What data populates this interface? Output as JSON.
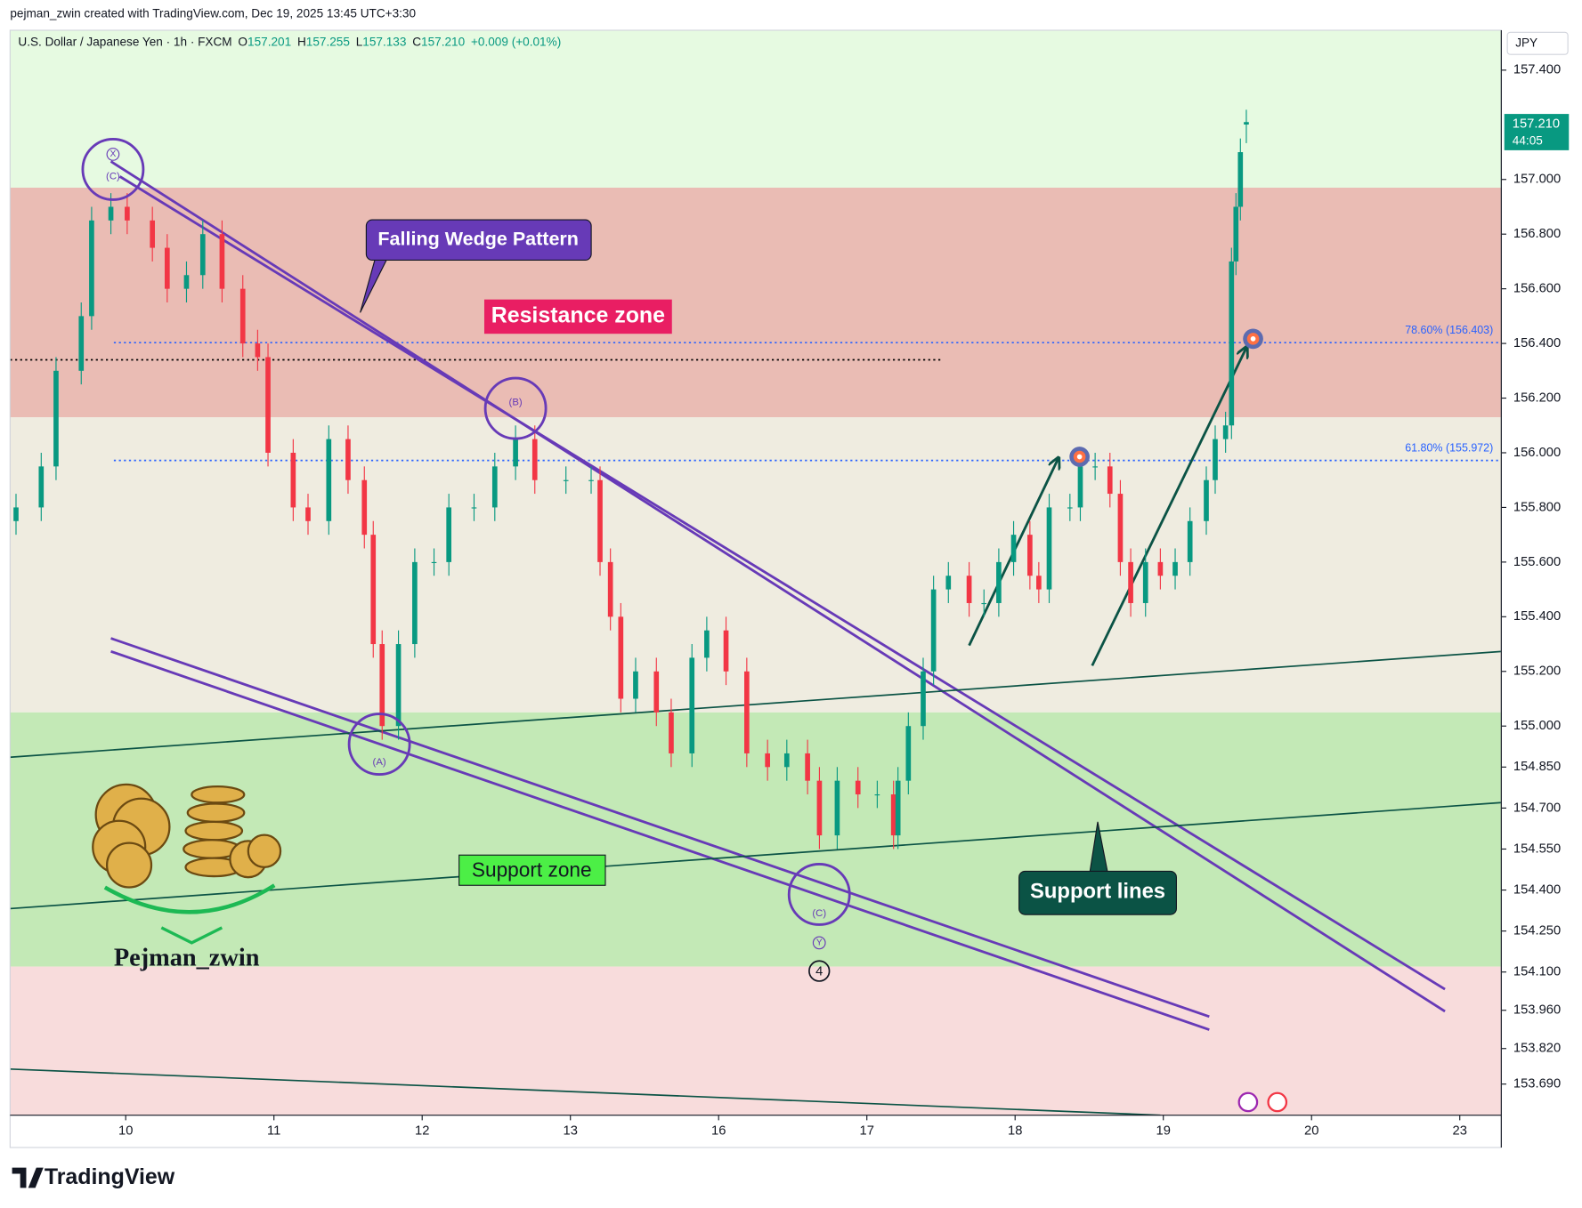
{
  "header": "pejman_zwin created with TradingView.com, Dec 19, 2025 13:45 UTC+3:30",
  "legend": {
    "symbol": "U.S. Dollar / Japanese Yen · 1h · FXCM",
    "items": [
      {
        "key": "O",
        "value": "157.201"
      },
      {
        "key": "H",
        "value": "157.255"
      },
      {
        "key": "L",
        "value": "157.133"
      },
      {
        "key": "C",
        "value": "157.210"
      }
    ],
    "change": "+0.009 (+0.01%)"
  },
  "currency": "JPY",
  "price_tag": {
    "price": "157.210",
    "countdown": "44:05"
  },
  "annotations": {
    "wedge": "Falling Wedge Pattern",
    "resistance": "Resistance zone",
    "support": "Support zone",
    "support_lines": "Support lines",
    "author": "Pejman_zwin",
    "waves": [
      "X",
      "(C)",
      "(B)",
      "(A)",
      "(C)",
      "Y",
      "4"
    ]
  },
  "footer": "TradingView",
  "chart_data": {
    "type": "candlestick",
    "up_color": "#089981",
    "down_color": "#f23645",
    "xlim": [
      -0.78,
      9.28
    ],
    "ylim": [
      153.576,
      157.546
    ],
    "xticks": [
      {
        "value": 0,
        "label": "10"
      },
      {
        "value": 1,
        "label": "11"
      },
      {
        "value": 2,
        "label": "12"
      },
      {
        "value": 3,
        "label": "13"
      },
      {
        "value": 4,
        "label": "16"
      },
      {
        "value": 5,
        "label": "17"
      },
      {
        "value": 6,
        "label": "18"
      },
      {
        "value": 7,
        "label": "19"
      },
      {
        "value": 8,
        "label": "20"
      },
      {
        "value": 9,
        "label": "23"
      }
    ],
    "yticks": [
      {
        "value": 157.4,
        "label": "157.400"
      },
      {
        "value": 157.0,
        "label": "157.000"
      },
      {
        "value": 156.8,
        "label": "156.800"
      },
      {
        "value": 156.6,
        "label": "156.600"
      },
      {
        "value": 156.4,
        "label": "156.400"
      },
      {
        "value": 156.2,
        "label": "156.200"
      },
      {
        "value": 156.0,
        "label": "156.000"
      },
      {
        "value": 155.8,
        "label": "155.800"
      },
      {
        "value": 155.6,
        "label": "155.600"
      },
      {
        "value": 155.4,
        "label": "155.400"
      },
      {
        "value": 155.2,
        "label": "155.200"
      },
      {
        "value": 155.0,
        "label": "155.000"
      },
      {
        "value": 154.85,
        "label": "154.850"
      },
      {
        "value": 154.7,
        "label": "154.700"
      },
      {
        "value": 154.55,
        "label": "154.550"
      },
      {
        "value": 154.4,
        "label": "154.400"
      },
      {
        "value": 154.25,
        "label": "154.250"
      },
      {
        "value": 154.1,
        "label": "154.100"
      },
      {
        "value": 153.96,
        "label": "153.960"
      },
      {
        "value": 153.82,
        "label": "153.820"
      },
      {
        "value": 153.69,
        "label": "153.690"
      }
    ],
    "zones": [
      {
        "from": 156.97,
        "to": 157.546,
        "color": "#e6fae1"
      },
      {
        "from": 156.13,
        "to": 156.97,
        "color": "#eabcb4"
      },
      {
        "from": 155.05,
        "to": 156.13,
        "color": "#efece0"
      },
      {
        "from": 154.12,
        "to": 155.05,
        "color": "#c3e9b6"
      },
      {
        "from": 153.576,
        "to": 154.12,
        "color": "#f8dcdc"
      }
    ],
    "x": [
      -0.74,
      -0.57,
      -0.47,
      -0.3,
      -0.23,
      -0.1,
      0.01,
      0.18,
      0.28,
      0.41,
      0.52,
      0.65,
      0.79,
      0.89,
      0.96,
      1.13,
      1.23,
      1.37,
      1.5,
      1.61,
      1.67,
      1.73,
      1.84,
      1.95,
      2.08,
      2.18,
      2.35,
      2.49,
      2.63,
      2.76,
      2.97,
      3.14,
      3.2,
      3.27,
      3.34,
      3.44,
      3.58,
      3.68,
      3.82,
      3.92,
      4.05,
      4.19,
      4.33,
      4.46,
      4.6,
      4.68,
      4.8,
      4.94,
      5.07,
      5.18,
      5.21,
      5.28,
      5.38,
      5.45,
      5.55,
      5.69,
      5.79,
      5.89,
      5.99,
      6.1,
      6.16,
      6.23,
      6.37,
      6.44,
      6.54,
      6.64,
      6.71,
      6.78,
      6.88,
      6.98,
      7.08,
      7.18,
      7.29,
      7.35,
      7.42,
      7.46,
      7.49,
      7.52,
      7.56
    ],
    "open": [
      155.75,
      155.8,
      155.95,
      156.3,
      156.5,
      156.85,
      156.9,
      156.85,
      156.75,
      156.6,
      156.65,
      156.8,
      156.6,
      156.4,
      156.35,
      156.0,
      155.8,
      155.75,
      156.05,
      155.9,
      155.7,
      155.3,
      155.0,
      155.3,
      155.6,
      155.6,
      155.8,
      155.8,
      155.95,
      156.05,
      155.9,
      155.9,
      155.9,
      155.6,
      155.4,
      155.1,
      155.2,
      155.05,
      154.9,
      155.25,
      155.35,
      155.2,
      154.9,
      154.85,
      154.9,
      154.8,
      154.6,
      154.8,
      154.75,
      154.75,
      154.6,
      154.8,
      155.0,
      155.2,
      155.5,
      155.55,
      155.45,
      155.45,
      155.6,
      155.7,
      155.55,
      155.5,
      155.8,
      155.8,
      155.95,
      155.95,
      155.85,
      155.6,
      155.45,
      155.6,
      155.55,
      155.6,
      155.75,
      155.9,
      156.05,
      156.1,
      156.7,
      156.9,
      157.201
    ],
    "high": [
      155.85,
      156.0,
      156.35,
      156.55,
      156.9,
      156.95,
      156.95,
      156.9,
      156.8,
      156.7,
      156.85,
      156.85,
      156.65,
      156.45,
      156.4,
      156.05,
      155.85,
      156.1,
      156.1,
      155.95,
      155.75,
      155.35,
      155.35,
      155.65,
      155.65,
      155.85,
      155.85,
      156.0,
      156.1,
      156.1,
      155.95,
      155.95,
      155.95,
      155.65,
      155.45,
      155.25,
      155.25,
      155.1,
      155.3,
      155.4,
      155.4,
      155.25,
      154.95,
      154.95,
      154.95,
      154.85,
      154.85,
      154.85,
      154.8,
      154.8,
      154.85,
      155.05,
      155.25,
      155.55,
      155.6,
      155.6,
      155.5,
      155.65,
      155.75,
      155.75,
      155.6,
      155.85,
      155.85,
      156.0,
      156.0,
      156.0,
      155.9,
      155.65,
      155.65,
      155.65,
      155.65,
      155.8,
      155.95,
      156.1,
      156.15,
      156.75,
      156.95,
      157.15,
      157.255
    ],
    "low": [
      155.7,
      155.75,
      155.9,
      156.25,
      156.45,
      156.8,
      156.8,
      156.7,
      156.55,
      156.55,
      156.6,
      156.55,
      156.35,
      156.3,
      155.95,
      155.75,
      155.7,
      155.7,
      155.85,
      155.65,
      155.25,
      154.95,
      154.95,
      155.25,
      155.55,
      155.55,
      155.75,
      155.75,
      155.9,
      155.85,
      155.85,
      155.85,
      155.55,
      155.35,
      155.05,
      155.05,
      155.0,
      154.85,
      154.85,
      155.2,
      155.15,
      154.85,
      154.8,
      154.8,
      154.75,
      154.55,
      154.55,
      154.7,
      154.7,
      154.55,
      154.55,
      154.75,
      154.95,
      155.15,
      155.45,
      155.4,
      155.4,
      155.4,
      155.55,
      155.5,
      155.45,
      155.45,
      155.75,
      155.75,
      155.9,
      155.8,
      155.55,
      155.4,
      155.4,
      155.5,
      155.5,
      155.55,
      155.7,
      155.85,
      156.0,
      156.05,
      156.65,
      156.85,
      157.133
    ],
    "close": [
      155.8,
      155.95,
      156.3,
      156.5,
      156.85,
      156.9,
      156.85,
      156.75,
      156.6,
      156.65,
      156.8,
      156.6,
      156.4,
      156.35,
      156.0,
      155.8,
      155.75,
      156.05,
      155.9,
      155.7,
      155.3,
      155.0,
      155.3,
      155.6,
      155.6,
      155.8,
      155.8,
      155.95,
      156.05,
      155.9,
      155.9,
      155.9,
      155.6,
      155.4,
      155.1,
      155.2,
      155.05,
      154.9,
      155.25,
      155.35,
      155.2,
      154.9,
      154.85,
      154.9,
      154.8,
      154.6,
      154.8,
      154.75,
      154.75,
      154.6,
      154.8,
      155.0,
      155.2,
      155.5,
      155.55,
      155.45,
      155.45,
      155.6,
      155.7,
      155.55,
      155.5,
      155.8,
      155.8,
      155.95,
      155.95,
      155.85,
      155.6,
      155.45,
      155.6,
      155.55,
      155.6,
      155.75,
      155.9,
      156.05,
      156.1,
      156.7,
      156.9,
      157.1,
      157.21
    ],
    "levels": [
      {
        "value": 156.403,
        "from": -0.08,
        "label": "78.60% (156.403)",
        "color": "#2962ff"
      },
      {
        "value": 155.972,
        "from": -0.08,
        "label": "61.80% (155.972)",
        "color": "#2962ff"
      },
      {
        "value": 156.34,
        "from": -0.78,
        "to": 5.5,
        "color": "#000000"
      }
    ],
    "drawings": [
      {
        "color": "#673ab7",
        "width": 2.5,
        "points": [
          [
            -0.1,
            157.066
          ],
          [
            8.9,
            153.956
          ]
        ]
      },
      {
        "color": "#673ab7",
        "width": 2.5,
        "points": [
          [
            -0.04,
            157.011
          ],
          [
            8.9,
            154.037
          ]
        ]
      },
      {
        "color": "#673ab7",
        "width": 2.5,
        "points": [
          [
            -0.1,
            155.321
          ],
          [
            7.31,
            153.937
          ]
        ]
      },
      {
        "color": "#673ab7",
        "width": 2.5,
        "points": [
          [
            -0.1,
            155.273
          ],
          [
            7.31,
            153.889
          ]
        ]
      },
      {
        "color": "#0b5345",
        "width": 1.5,
        "points": [
          [
            -0.78,
            154.886
          ],
          [
            9.28,
            155.273
          ]
        ]
      },
      {
        "color": "#0b5345",
        "width": 1.5,
        "points": [
          [
            -0.78,
            154.332
          ],
          [
            9.28,
            154.72
          ]
        ]
      },
      {
        "color": "#0b5345",
        "width": 1.5,
        "points": [
          [
            -0.78,
            153.745
          ],
          [
            6.98,
            153.576
          ]
        ]
      },
      {
        "color": "#0b5345",
        "width": 2.5,
        "arrow": true,
        "points": [
          [
            5.69,
            155.295
          ],
          [
            6.29,
            155.978
          ]
        ]
      },
      {
        "color": "#0b5345",
        "width": 2.5,
        "arrow": true,
        "points": [
          [
            6.52,
            155.221
          ],
          [
            7.56,
            156.384
          ]
        ]
      }
    ]
  }
}
